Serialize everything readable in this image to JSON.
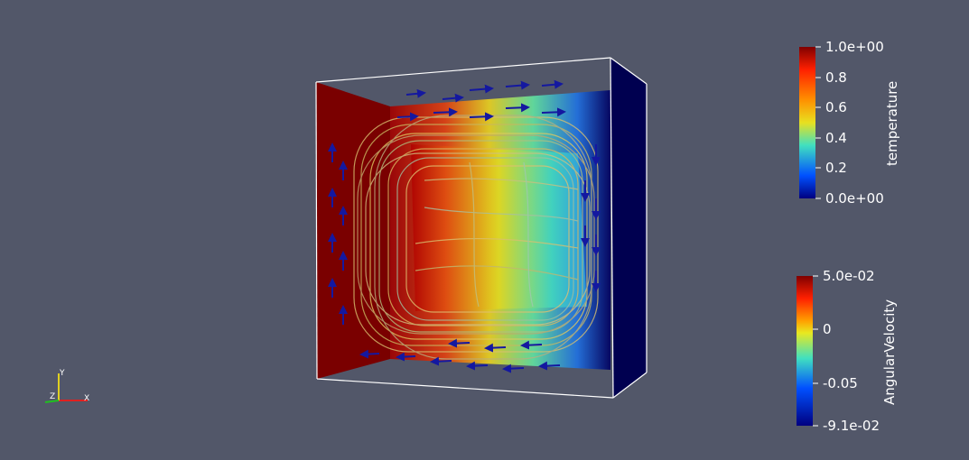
{
  "colors": {
    "background": "#525769",
    "outline": "#ffffff",
    "glyph": "#1418a0",
    "axis_x": "#e02020",
    "axis_y": "#e0d020",
    "axis_z": "#20c020"
  },
  "temperature_bar": {
    "title": "temperature",
    "labels": [
      "1.0e+00",
      "0.8",
      "0.6",
      "0.4",
      "0.2",
      "0.0e+00"
    ]
  },
  "angular_bar": {
    "title": "AngularVelocity",
    "labels": [
      "5.0e-02",
      "0",
      "-0.05",
      "-9.1e-02"
    ]
  },
  "axes": {
    "x": "X",
    "y": "Y",
    "z": "Z"
  }
}
